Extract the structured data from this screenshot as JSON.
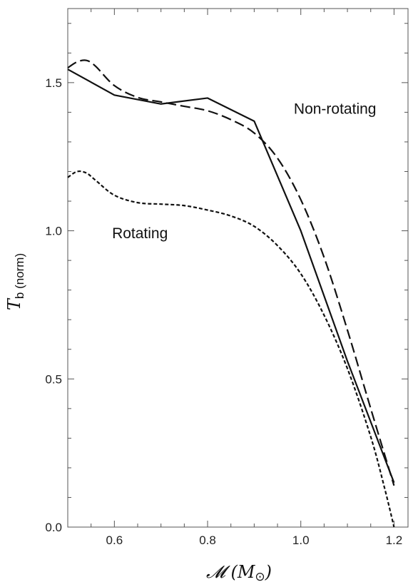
{
  "chart_data": {
    "type": "line",
    "xlabel": "𝓜 (M⊙)",
    "xlabel_main": "𝓜 (M",
    "xlabel_sub": "⊙",
    "xlabel_close": ")",
    "ylabel_main": "T",
    "ylabel_sub": "b (norm)",
    "xlim": [
      0.5,
      1.23
    ],
    "ylim": [
      0.0,
      1.75
    ],
    "x_ticks": [
      0.6,
      0.8,
      1.0,
      1.2
    ],
    "x_tick_labels": [
      "0.6",
      "0.8",
      "1.0",
      "1.2"
    ],
    "y_ticks": [
      0.0,
      0.5,
      1.0,
      1.5
    ],
    "y_tick_labels": [
      "0.0",
      "0.5",
      "1.0",
      "1.5"
    ],
    "grid": false,
    "annotations": [
      {
        "text": "Non-rotating",
        "x": 0.985,
        "y": 1.395
      },
      {
        "text": "Rotating",
        "x": 0.595,
        "y": 0.975
      }
    ],
    "series": [
      {
        "style": "solid",
        "x": [
          0.5,
          0.6,
          0.7,
          0.8,
          0.9,
          1.0,
          1.1,
          1.2
        ],
        "y": [
          1.545,
          1.458,
          1.428,
          1.448,
          1.37,
          1.0,
          0.56,
          0.15
        ]
      },
      {
        "style": "dashed",
        "x": [
          0.5,
          0.52,
          0.54,
          0.56,
          0.6,
          0.65,
          0.7,
          0.75,
          0.8,
          0.85,
          0.9,
          0.95,
          1.0,
          1.05,
          1.1,
          1.15,
          1.2
        ],
        "y": [
          1.55,
          1.57,
          1.575,
          1.555,
          1.49,
          1.45,
          1.435,
          1.42,
          1.405,
          1.375,
          1.33,
          1.245,
          1.105,
          0.91,
          0.665,
          0.4,
          0.14
        ]
      },
      {
        "style": "dotted",
        "x": [
          0.5,
          0.52,
          0.54,
          0.56,
          0.6,
          0.65,
          0.7,
          0.75,
          0.8,
          0.85,
          0.9,
          0.95,
          1.0,
          1.05,
          1.1,
          1.15,
          1.18,
          1.2
        ],
        "y": [
          1.18,
          1.2,
          1.195,
          1.17,
          1.12,
          1.095,
          1.09,
          1.085,
          1.07,
          1.05,
          1.015,
          0.95,
          0.855,
          0.715,
          0.535,
          0.305,
          0.13,
          0.0
        ]
      }
    ]
  }
}
